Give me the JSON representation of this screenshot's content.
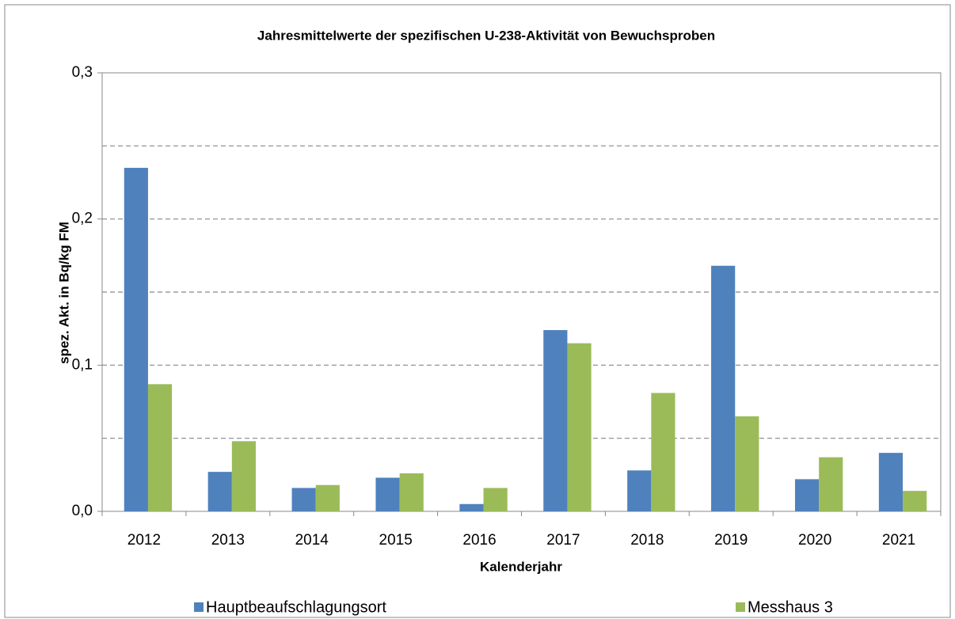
{
  "chart_data": {
    "type": "bar",
    "title": "Jahresmittelwerte der spezifischen U-238-Aktivität von Bewuchsproben",
    "x_label": "Kalenderjahr",
    "y_label": "spez. Akt. in Bq/kg FM",
    "categories": [
      "2012",
      "2013",
      "2014",
      "2015",
      "2016",
      "2017",
      "2018",
      "2019",
      "2020",
      "2021"
    ],
    "series": [
      {
        "name": "Hauptbeaufschlagungsort",
        "color": "#4f81bd",
        "values": [
          0.235,
          0.027,
          0.016,
          0.023,
          0.005,
          0.124,
          0.028,
          0.168,
          0.022,
          0.04
        ]
      },
      {
        "name": "Messhaus 3",
        "color": "#9bbb59",
        "values": [
          0.087,
          0.048,
          0.018,
          0.026,
          0.016,
          0.115,
          0.081,
          0.065,
          0.037,
          0.014
        ]
      }
    ],
    "ylim": [
      0,
      0.3
    ],
    "yticks": [
      {
        "value": 0,
        "label": "0,0"
      },
      {
        "value": 0.1,
        "label": "0,1"
      },
      {
        "value": 0.2,
        "label": "0,2"
      },
      {
        "value": 0.3,
        "label": "0,3"
      }
    ],
    "ygrid": [
      0.05,
      0.1,
      0.15,
      0.2,
      0.25
    ],
    "legend": "bottom"
  }
}
